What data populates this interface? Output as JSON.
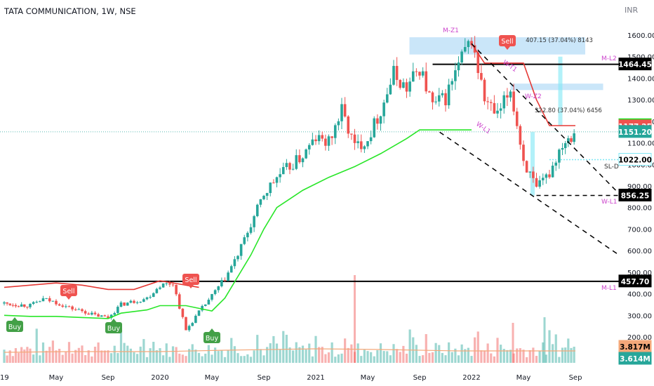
{
  "title": "TATA COMMUNICATION, 1W, NSE",
  "currency": "INR",
  "colors": {
    "up": "#26a69a",
    "down": "#ef5350",
    "st_up": "#29e629",
    "st_down": "#e53935",
    "zone": "#bde0f7",
    "cyan": "#7fe8f5",
    "magenta": "#cc44cc",
    "vol_ma": "#f4a87a"
  },
  "chart_data": {
    "type": "candlestick",
    "y_axis": {
      "range": [
        50,
        1650
      ],
      "ticks": [
        1600,
        1500,
        1400,
        1300,
        1200,
        1100,
        1000,
        900,
        800,
        700,
        600,
        500,
        400,
        300,
        200
      ]
    },
    "x_axis": {
      "range": [
        "2019-01",
        "2022-09"
      ],
      "ticks": [
        {
          "label": "19",
          "date": "2019-01"
        },
        {
          "label": "May",
          "date": "2019-05"
        },
        {
          "label": "Sep",
          "date": "2019-09"
        },
        {
          "label": "2020",
          "date": "2020-01"
        },
        {
          "label": "May",
          "date": "2020-05"
        },
        {
          "label": "Sep",
          "date": "2020-09"
        },
        {
          "label": "2021",
          "date": "2021-01"
        },
        {
          "label": "May",
          "date": "2021-05"
        },
        {
          "label": "Sep",
          "date": "2021-09"
        },
        {
          "label": "2022",
          "date": "2022-01"
        },
        {
          "label": "May",
          "date": "2022-05"
        },
        {
          "label": "Sep",
          "date": "2022-09"
        }
      ]
    },
    "price_path": [
      [
        "2019-01",
        355
      ],
      [
        "2019-03",
        345
      ],
      [
        "2019-04",
        375
      ],
      [
        "2019-05",
        360
      ],
      [
        "2019-06",
        335
      ],
      [
        "2019-07",
        320
      ],
      [
        "2019-08",
        300
      ],
      [
        "2019-09",
        290
      ],
      [
        "2019-10",
        350
      ],
      [
        "2019-11",
        365
      ],
      [
        "2019-12",
        380
      ],
      [
        "2020-01",
        440
      ],
      [
        "2020-02",
        450
      ],
      [
        "2020-03",
        230
      ],
      [
        "2020-04",
        315
      ],
      [
        "2020-05",
        390
      ],
      [
        "2020-06",
        470
      ],
      [
        "2020-07",
        580
      ],
      [
        "2020-08",
        720
      ],
      [
        "2020-09",
        860
      ],
      [
        "2020-10",
        940
      ],
      [
        "2020-11",
        990
      ],
      [
        "2020-12",
        1040
      ],
      [
        "2021-01",
        1120
      ],
      [
        "2021-02",
        1100
      ],
      [
        "2021-03",
        1250
      ],
      [
        "2021-04",
        1080
      ],
      [
        "2021-05",
        1120
      ],
      [
        "2021-06",
        1250
      ],
      [
        "2021-07",
        1420
      ],
      [
        "2021-08",
        1350
      ],
      [
        "2021-09",
        1450
      ],
      [
        "2021-10",
        1270
      ],
      [
        "2021-11",
        1310
      ],
      [
        "2021-12",
        1460
      ],
      [
        "2022-01",
        1580
      ],
      [
        "2022-02",
        1300
      ],
      [
        "2022-03",
        1220
      ],
      [
        "2022-04",
        1350
      ],
      [
        "2022-05",
        1020
      ],
      [
        "2022-06",
        880
      ],
      [
        "2022-07",
        960
      ],
      [
        "2022-08",
        1100
      ],
      [
        "2022-08-28",
        1151.2
      ]
    ],
    "supertrend_up_path": [
      [
        "2019-01",
        1
      ],
      [
        "2019-01",
        300
      ],
      [
        "2019-03",
        295
      ],
      [
        "2019-05",
        295
      ],
      [
        "2019-07",
        290
      ],
      [
        "2019-09",
        285
      ],
      [
        "2019-10",
        310
      ],
      [
        "2019-12",
        325
      ],
      [
        "2020-01",
        345
      ],
      [
        "2020-03",
        345
      ],
      [
        "2020-05",
        320
      ],
      [
        "2020-06",
        380
      ],
      [
        "2020-07",
        480
      ],
      [
        "2020-08",
        580
      ],
      [
        "2020-09",
        700
      ],
      [
        "2020-10",
        800
      ],
      [
        "2020-11",
        840
      ],
      [
        "2020-12",
        880
      ],
      [
        "2021-02",
        940
      ],
      [
        "2021-04",
        990
      ],
      [
        "2021-06",
        1050
      ],
      [
        "2021-08",
        1120
      ],
      [
        "2021-09",
        1160
      ],
      [
        "2022-01",
        1160
      ]
    ],
    "supertrend_down_path": [
      [
        "2019-01",
        430
      ],
      [
        "2019-05",
        450
      ],
      [
        "2019-07",
        440
      ],
      [
        "2019-09",
        420
      ],
      [
        "2019-11",
        420
      ],
      [
        "2020-01",
        460
      ],
      [
        "2020-03",
        440
      ],
      [
        "2020-04",
        430
      ],
      [
        "2022-01",
        1560
      ],
      [
        "2022-02",
        1470
      ],
      [
        "2022-05",
        1470
      ],
      [
        "2022-06",
        1300
      ],
      [
        "2022-07",
        1180
      ],
      [
        "2022-09",
        1180
      ]
    ],
    "volume_ma_path": [
      [
        "2019-01",
        150
      ],
      [
        "2019-06",
        160
      ],
      [
        "2020-01",
        160
      ],
      [
        "2020-06",
        180
      ],
      [
        "2021-01",
        200
      ],
      [
        "2021-06",
        190
      ],
      [
        "2021-12",
        170
      ],
      [
        "2022-03",
        170
      ],
      [
        "2022-06",
        170
      ],
      [
        "2022-09",
        170
      ]
    ],
    "levels": [
      {
        "label": "1464.45",
        "value": 1464.45,
        "style": "solid",
        "color": "#000000"
      },
      {
        "label": "457.70",
        "value": 457.7,
        "style": "solid",
        "color": "#000000"
      },
      {
        "label": "856.25",
        "value": 856.25,
        "style": "dashed",
        "color": "#000000"
      }
    ],
    "price_labels": [
      {
        "label": "1182.55",
        "value": 1182.55,
        "bg": "#1de01d",
        "fg": "#000000"
      },
      {
        "label": "1177.25",
        "value": 1177.25,
        "bg": "#ef5350",
        "fg": "#ffffff"
      },
      {
        "label": "1151.20",
        "value": 1151.2,
        "bg": "#26a69a",
        "fg": "#ffffff"
      },
      {
        "label": "1022.00",
        "value": 1022,
        "bg": "#ffffff",
        "fg": "#000000",
        "border": "#7fe8f5"
      },
      {
        "label": "3.817M",
        "value": 132,
        "bg": "#f4a87a",
        "fg": "#000000"
      },
      {
        "label": "3.614M",
        "value": 90,
        "bg": "#26a69a",
        "fg": "#ffffff"
      }
    ],
    "measurements": [
      {
        "label": "407.15 (37.04%) 8143",
        "x_from": "2021-08",
        "x_to": "2022-09",
        "y_from": 1510,
        "y_to": 1580
      },
      {
        "label": "322.80 (37.04%) 6456",
        "x_from": "2022-05",
        "x_to": "2022-08",
        "y_from": 1170,
        "y_to": 1500
      }
    ],
    "zone_labels": [
      {
        "text": "M-Z1",
        "date": "2021-09",
        "value": 1625
      },
      {
        "text": "M-L2",
        "date": "2022-09",
        "value": 1490
      },
      {
        "text": "W-Z2",
        "date": "2022-04",
        "value": 1345
      },
      {
        "text": "W-L1",
        "date": "2022-09",
        "value": 825
      },
      {
        "text": "M-L1",
        "date": "2022-09",
        "value": 400
      },
      {
        "text": "SL-D",
        "date": "2022-09",
        "value": 1003
      },
      {
        "text": "W-L1",
        "date": "2021-12",
        "value": 1145
      },
      {
        "text": "W-T1",
        "date": "2022-02",
        "value": 1450
      }
    ],
    "signals": [
      {
        "type": "Buy",
        "date": "2019-01",
        "value": 290
      },
      {
        "type": "Buy",
        "date": "2019-09",
        "value": 285
      },
      {
        "type": "Buy",
        "date": "2020-04",
        "value": 230
      },
      {
        "type": "Sell",
        "date": "2019-06",
        "value": 455
      },
      {
        "type": "Sell",
        "date": "2020-03",
        "value": 475
      },
      {
        "type": "Sell",
        "date": "2022-01",
        "value": 1590
      }
    ]
  }
}
